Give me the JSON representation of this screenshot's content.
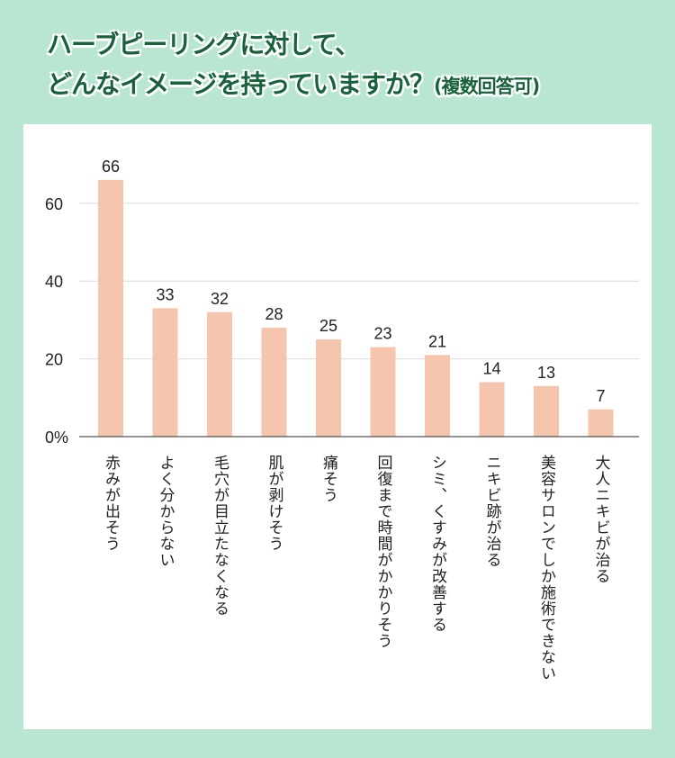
{
  "title": {
    "line1": "ハーブピーリングに対して、",
    "line2": "どんなイメージを持っていますか？",
    "note": "(複数回答可)"
  },
  "chart_data": {
    "type": "bar",
    "categories": [
      "赤みが出そう",
      "よく分からない",
      "毛穴が目立たなくなる",
      "肌が剥けそう",
      "痛そう",
      "回復まで時間がかかりそう",
      "シミ、くすみが改善する",
      "ニキビ跡が治る",
      "美容サロンでしか施術できない",
      "大人ニキビが治る"
    ],
    "values": [
      66,
      33,
      32,
      28,
      25,
      23,
      21,
      14,
      13,
      7
    ],
    "yticks": [
      "0%",
      "20",
      "40",
      "60"
    ],
    "ylim": [
      0,
      70
    ],
    "grid": true,
    "bar_color": "#f5c5ad"
  }
}
